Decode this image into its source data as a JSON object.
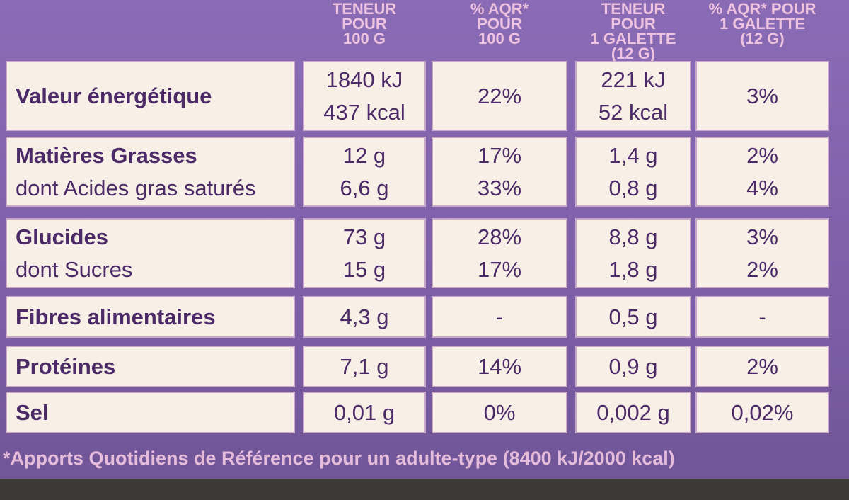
{
  "header": {
    "columns": [
      [
        "TENEUR",
        "POUR",
        "100 G"
      ],
      [
        "% AQR*",
        "POUR",
        "100 G"
      ],
      [
        "TENEUR POUR",
        "1 GALETTE",
        "(12 G)"
      ],
      [
        "% AQR* POUR",
        "1 GALETTE",
        "(12 G)"
      ]
    ]
  },
  "table": {
    "rows": [
      {
        "label": [
          "Valeur énergétique"
        ],
        "cells": [
          [
            "1840 kJ",
            "437 kcal"
          ],
          [
            "22%"
          ],
          [
            "221 kJ",
            "52 kcal"
          ],
          [
            "3%"
          ]
        ]
      },
      {
        "label": [
          "Matières Grasses",
          "dont Acides gras saturés"
        ],
        "cells": [
          [
            "12 g",
            "6,6 g"
          ],
          [
            "17%",
            "33%"
          ],
          [
            "1,4 g",
            "0,8 g"
          ],
          [
            "2%",
            "4%"
          ]
        ]
      },
      {
        "label": [
          "Glucides",
          "dont Sucres"
        ],
        "cells": [
          [
            "73 g",
            "15 g"
          ],
          [
            "28%",
            "17%"
          ],
          [
            "8,8 g",
            "1,8 g"
          ],
          [
            "3%",
            "2%"
          ]
        ]
      },
      {
        "label": [
          "Fibres alimentaires"
        ],
        "cells": [
          [
            "4,3 g"
          ],
          [
            "-"
          ],
          [
            "0,5 g"
          ],
          [
            "-"
          ]
        ]
      },
      {
        "label": [
          "Protéines"
        ],
        "cells": [
          [
            "7,1 g"
          ],
          [
            "14%"
          ],
          [
            "0,9 g"
          ],
          [
            "2%"
          ]
        ]
      },
      {
        "label": [
          "Sel"
        ],
        "cells": [
          [
            "0,01 g"
          ],
          [
            "0%"
          ],
          [
            "0,002 g"
          ],
          [
            "0,02%"
          ]
        ]
      }
    ]
  },
  "footnote": "*Apports Quotidiens de Référence pour un adulte-type (8400 kJ/2000 kcal)"
}
